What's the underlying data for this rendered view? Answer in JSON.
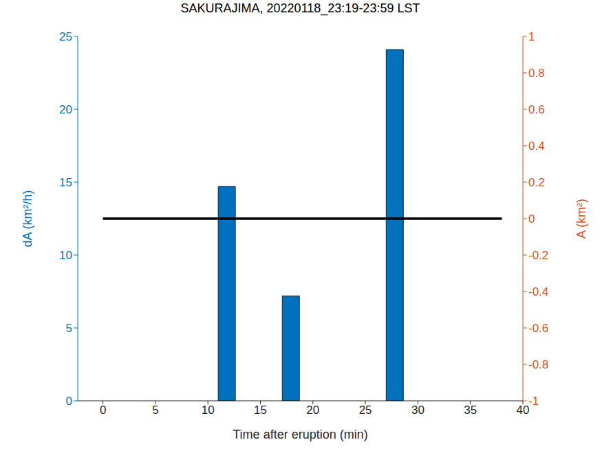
{
  "chart_data": {
    "type": "bar",
    "title": "SAKURAJIMA, 20220118_23:19-23:59 LST",
    "x_label": "Time after eruption (min)",
    "y_label": "dA (km²/h)",
    "y2_label": "A (km²)",
    "xlim": [
      -2.4,
      40
    ],
    "xticks": [
      0,
      5,
      10,
      15,
      20,
      25,
      30,
      35,
      40
    ],
    "ylim": [
      0,
      25
    ],
    "yticks": [
      0,
      5,
      10,
      15,
      20,
      25
    ],
    "y2lim": [
      -1,
      1
    ],
    "y2ticks": [
      -1,
      -0.8,
      -0.6,
      -0.4,
      -0.2,
      0,
      0.2,
      0.4,
      0.6,
      0.8,
      1
    ],
    "grid": false,
    "series": [
      {
        "type": "bar",
        "color": "#0072BD",
        "x": [
          11.8,
          17.9,
          27.8
        ],
        "values": [
          14.7,
          7.2,
          24.1
        ]
      },
      {
        "type": "line",
        "color": "#000000",
        "axis": "y2",
        "x": [
          0,
          38
        ],
        "values": [
          0,
          0
        ]
      }
    ]
  }
}
